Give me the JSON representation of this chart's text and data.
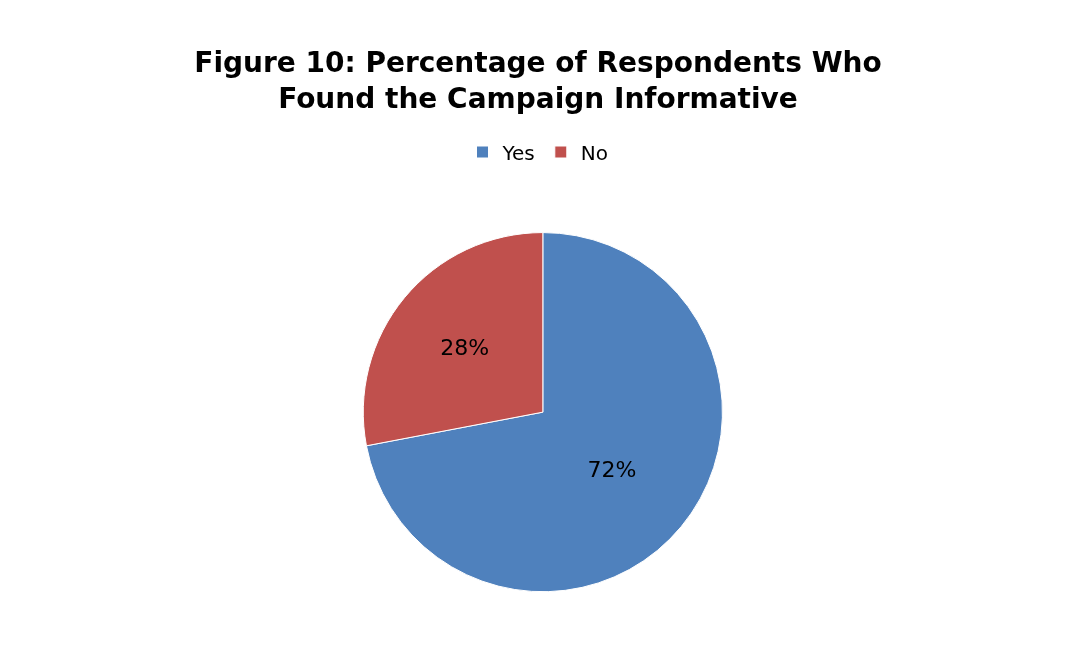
{
  "chart_data": {
    "type": "pie",
    "title": "Figure 10: Percentage of Respondents Who\nFound the Campaign Informative",
    "categories": [
      "Yes",
      "No"
    ],
    "values": [
      72,
      28
    ],
    "colors": [
      "#4f81bd",
      "#c0504d"
    ],
    "value_labels": [
      "72%",
      "28%"
    ],
    "legend": "top"
  }
}
